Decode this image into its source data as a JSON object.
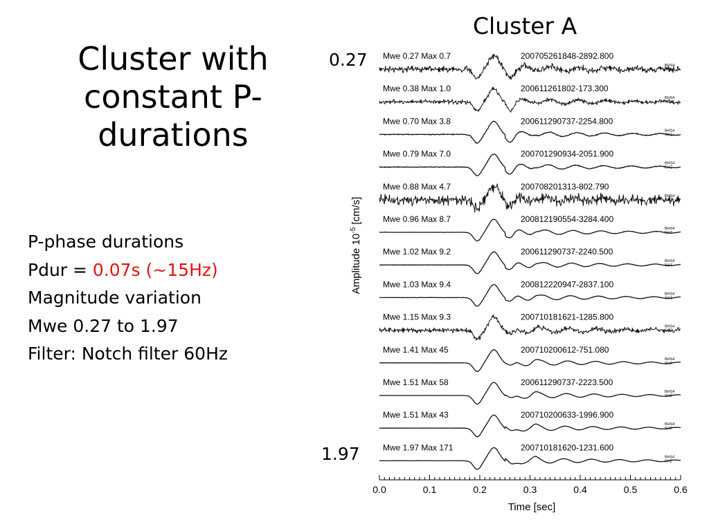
{
  "slide": {
    "title": "Cluster with constant P-durations",
    "bullets": [
      {
        "text": "P-phase durations"
      },
      {
        "prefix": "Pdur = ",
        "highlight": "0.07s (~15Hz)"
      },
      {
        "text": "Magnitude variation"
      },
      {
        "text": "Mwe 0.27 to 1.97"
      },
      {
        "text": "Filter: Notch filter 60Hz"
      }
    ],
    "cluster_label": "Cluster A",
    "mag_top": "0.27",
    "mag_bottom": "1.97",
    "highlight_color": "#e5120f"
  },
  "chart_data": {
    "type": "line",
    "title": "",
    "xlabel": "Time [sec]",
    "ylabel": "Amplitude 10-5 [cm/s]",
    "xlim": [
      0.0,
      0.6
    ],
    "xticks": [
      "0.0",
      "0.1",
      "0.2",
      "0.3",
      "0.4",
      "0.5",
      "0.6"
    ],
    "channel_label": [
      "BHS4",
      "SHZ"
    ],
    "p_onset_sec": 0.19,
    "series": [
      {
        "label": "Mwe 0.27 Max 0.7",
        "event": "200705261848-2892.800",
        "mwe": 0.27,
        "max": 0.7,
        "noise": 0.45
      },
      {
        "label": "Mwe 0.38 Max 1.0",
        "event": "200611261802-173.300",
        "mwe": 0.38,
        "max": 1.0,
        "noise": 0.3
      },
      {
        "label": "Mwe 0.70 Max 3.8",
        "event": "200611290737-2254.800",
        "mwe": 0.7,
        "max": 3.8,
        "noise": 0.06
      },
      {
        "label": "Mwe 0.79 Max 7.0",
        "event": "200701290934-2051.900",
        "mwe": 0.79,
        "max": 7.0,
        "noise": 0.05
      },
      {
        "label": "Mwe 0.88 Max 4.7",
        "event": "200708201313-802.790",
        "mwe": 0.88,
        "max": 4.7,
        "noise": 0.75
      },
      {
        "label": "Mwe 0.96 Max 8.7",
        "event": "200812190554-3284.400",
        "mwe": 0.96,
        "max": 8.7,
        "noise": 0.02
      },
      {
        "label": "Mwe 1.02 Max 9.2",
        "event": "200611290737-2240.500",
        "mwe": 1.02,
        "max": 9.2,
        "noise": 0.02
      },
      {
        "label": "Mwe 1.03 Max 9.4",
        "event": "200812220947-2837.100",
        "mwe": 1.03,
        "max": 9.4,
        "noise": 0.02
      },
      {
        "label": "Mwe 1.15 Max 9.3",
        "event": "200710181621-1285.800",
        "mwe": 1.15,
        "max": 9.3,
        "noise": 0.35
      },
      {
        "label": "Mwe 1.41 Max 45",
        "event": "200710200612-751.080",
        "mwe": 1.41,
        "max": 45,
        "noise": 0.01
      },
      {
        "label": "Mwe 1.51 Max 58",
        "event": "200611290737-2223.500",
        "mwe": 1.51,
        "max": 58,
        "noise": 0.01
      },
      {
        "label": "Mwe 1.51 Max 43",
        "event": "200710200633-1996.900",
        "mwe": 1.51,
        "max": 43,
        "noise": 0.01
      },
      {
        "label": "Mwe 1.97 Max 171",
        "event": "200710181620-1231.600",
        "mwe": 1.97,
        "max": 171,
        "noise": 0.01
      }
    ]
  }
}
